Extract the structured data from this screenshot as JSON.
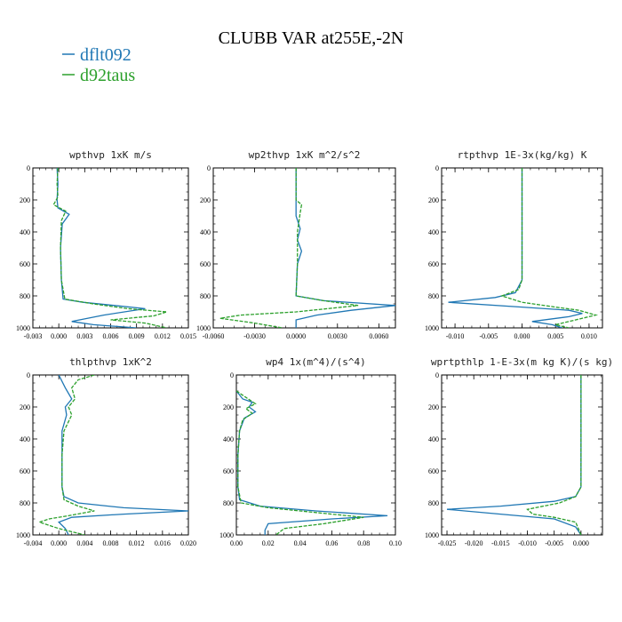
{
  "figure": {
    "title": "CLUBB VAR at255E,-2N"
  },
  "legend": {
    "entries": [
      {
        "name": "dflt092",
        "color": "#1f77b4",
        "style": "solid"
      },
      {
        "name": "d92taus",
        "color": "#2ca02c",
        "style": "dashed"
      }
    ]
  },
  "colors": {
    "dflt092": "#1f77b4",
    "d92taus": "#2ca02c"
  },
  "chart_data": [
    {
      "type": "line",
      "title": "wpthvp  1xK m/s",
      "xlim": [
        -0.003,
        0.015
      ],
      "ylim": [
        1000,
        0
      ],
      "xticks": [
        "-0.003",
        "0.000",
        "0.003",
        "0.006",
        "0.009",
        "0.012",
        "0.015"
      ],
      "yticks": [
        "0",
        "200",
        "400",
        "600",
        "800",
        "1000"
      ],
      "series": [
        {
          "name": "dflt092",
          "points": [
            [
              -0.0002,
              0
            ],
            [
              -0.0001,
              100
            ],
            [
              -0.0002,
              200
            ],
            [
              -0.0001,
              250
            ],
            [
              0.0012,
              290
            ],
            [
              0.0004,
              350
            ],
            [
              0.0002,
              500
            ],
            [
              0.0003,
              700
            ],
            [
              0.0005,
              820
            ],
            [
              0.0028,
              840
            ],
            [
              0.0065,
              860
            ],
            [
              0.01,
              880
            ],
            [
              0.0052,
              920
            ],
            [
              0.0015,
              960
            ],
            [
              0.004,
              980
            ],
            [
              0.009,
              1000
            ]
          ]
        },
        {
          "name": "d92taus",
          "points": [
            [
              -0.0001,
              0
            ],
            [
              -0.0002,
              100
            ],
            [
              -0.0001,
              180
            ],
            [
              -0.0006,
              230
            ],
            [
              0.0008,
              270
            ],
            [
              0.0003,
              330
            ],
            [
              0.0002,
              500
            ],
            [
              0.0003,
              700
            ],
            [
              0.0007,
              820
            ],
            [
              0.004,
              850
            ],
            [
              0.008,
              880
            ],
            [
              0.0125,
              900
            ],
            [
              0.011,
              925
            ],
            [
              0.006,
              950
            ],
            [
              0.01,
              970
            ],
            [
              0.0125,
              1000
            ]
          ]
        }
      ]
    },
    {
      "type": "line",
      "title": "wp2thvp  1xK m^2/s^2",
      "xlim": [
        -0.006,
        0.0072
      ],
      "ylim": [
        1000,
        0
      ],
      "xticks": [
        "-0.0060",
        "-0.0030",
        "0.0000",
        "0.0030",
        "0.0060"
      ],
      "yticks": [
        "0",
        "200",
        "400",
        "600",
        "800",
        "1000"
      ],
      "series": [
        {
          "name": "dflt092",
          "points": [
            [
              0.0,
              0
            ],
            [
              0.0,
              300
            ],
            [
              0.0003,
              380
            ],
            [
              0.0001,
              450
            ],
            [
              0.0004,
              520
            ],
            [
              0.0001,
              600
            ],
            [
              0.0,
              800
            ],
            [
              0.002,
              830
            ],
            [
              0.0072,
              860
            ],
            [
              0.004,
              890
            ],
            [
              0.0015,
              920
            ],
            [
              0.0,
              950
            ],
            [
              0.0,
              1000
            ]
          ]
        },
        {
          "name": "d92taus",
          "points": [
            [
              0.0,
              0
            ],
            [
              0.0,
              200
            ],
            [
              0.0004,
              230
            ],
            [
              0.0003,
              280
            ],
            [
              0.0001,
              400
            ],
            [
              0.0001,
              600
            ],
            [
              0.0,
              800
            ],
            [
              0.002,
              830
            ],
            [
              0.0045,
              860
            ],
            [
              0.0,
              900
            ],
            [
              -0.004,
              920
            ],
            [
              -0.0055,
              940
            ],
            [
              -0.003,
              970
            ],
            [
              -0.001,
              1000
            ]
          ]
        }
      ]
    },
    {
      "type": "line",
      "title": "rtpthvp  1E-3x(kg/kg) K",
      "xlim": [
        -0.012,
        0.012
      ],
      "ylim": [
        1000,
        0
      ],
      "xticks": [
        "-0.010",
        "-0.005",
        "0.000",
        "0.005",
        "0.010"
      ],
      "yticks": [
        "0",
        "200",
        "400",
        "600",
        "800",
        "1000"
      ],
      "series": [
        {
          "name": "dflt092",
          "points": [
            [
              0.0,
              0
            ],
            [
              0.0,
              500
            ],
            [
              0.0,
              700
            ],
            [
              -0.001,
              780
            ],
            [
              -0.004,
              810
            ],
            [
              -0.011,
              840
            ],
            [
              0.0,
              870
            ],
            [
              0.007,
              890
            ],
            [
              0.009,
              910
            ],
            [
              0.007,
              930
            ],
            [
              0.0015,
              960
            ],
            [
              0.0045,
              980
            ],
            [
              0.006,
              1000
            ]
          ]
        },
        {
          "name": "d92taus",
          "points": [
            [
              0.0,
              0
            ],
            [
              0.0,
              500
            ],
            [
              0.0,
              700
            ],
            [
              -0.0005,
              760
            ],
            [
              -0.003,
              800
            ],
            [
              0.0,
              840
            ],
            [
              0.005,
              870
            ],
            [
              0.0085,
              890
            ],
            [
              0.011,
              920
            ],
            [
              0.008,
              950
            ],
            [
              0.005,
              980
            ],
            [
              0.007,
              1000
            ]
          ]
        }
      ]
    },
    {
      "type": "line",
      "title": "thlpthvp  1xK^2",
      "xlim": [
        -0.004,
        0.02
      ],
      "ylim": [
        1000,
        0
      ],
      "xticks": [
        "-0.004",
        "0.000",
        "0.004",
        "0.008",
        "0.012",
        "0.016",
        "0.020"
      ],
      "yticks": [
        "0",
        "200",
        "400",
        "600",
        "800",
        "1000"
      ],
      "series": [
        {
          "name": "dflt092",
          "points": [
            [
              0.0,
              0
            ],
            [
              0.001,
              80
            ],
            [
              0.002,
              150
            ],
            [
              0.001,
              200
            ],
            [
              0.0012,
              250
            ],
            [
              0.0005,
              350
            ],
            [
              0.0005,
              500
            ],
            [
              0.0005,
              700
            ],
            [
              0.0008,
              760
            ],
            [
              0.003,
              800
            ],
            [
              0.01,
              830
            ],
            [
              0.02,
              850
            ],
            [
              0.01,
              870
            ],
            [
              0.002,
              890
            ],
            [
              0.0,
              920
            ],
            [
              0.001,
              960
            ],
            [
              0.0015,
              1000
            ]
          ]
        },
        {
          "name": "d92taus",
          "points": [
            [
              0.0055,
              0
            ],
            [
              0.003,
              30
            ],
            [
              0.002,
              80
            ],
            [
              0.0025,
              150
            ],
            [
              0.0015,
              200
            ],
            [
              0.002,
              250
            ],
            [
              0.0008,
              350
            ],
            [
              0.0005,
              500
            ],
            [
              0.0005,
              700
            ],
            [
              0.0008,
              780
            ],
            [
              0.003,
              820
            ],
            [
              0.0055,
              850
            ],
            [
              0.0015,
              880
            ],
            [
              -0.0015,
              900
            ],
            [
              -0.003,
              920
            ],
            [
              0.0,
              960
            ],
            [
              0.004,
              1000
            ]
          ]
        }
      ]
    },
    {
      "type": "line",
      "title": "wp4  1x(m^4)/(s^4)",
      "xlim": [
        0.0,
        0.1
      ],
      "ylim": [
        1000,
        0
      ],
      "xticks": [
        "0.00",
        "0.02",
        "0.04",
        "0.06",
        "0.08",
        "0.10"
      ],
      "yticks": [
        "0",
        "200",
        "400",
        "600",
        "800",
        "1000"
      ],
      "series": [
        {
          "name": "dflt092",
          "points": [
            [
              0.0,
              100
            ],
            [
              0.004,
              150
            ],
            [
              0.01,
              170
            ],
            [
              0.008,
              200
            ],
            [
              0.012,
              230
            ],
            [
              0.005,
              270
            ],
            [
              0.002,
              350
            ],
            [
              0.001,
              500
            ],
            [
              0.001,
              700
            ],
            [
              0.002,
              780
            ],
            [
              0.015,
              820
            ],
            [
              0.05,
              850
            ],
            [
              0.095,
              880
            ],
            [
              0.06,
              900
            ],
            [
              0.02,
              930
            ],
            [
              0.018,
              970
            ],
            [
              0.018,
              1000
            ]
          ]
        },
        {
          "name": "d92taus",
          "points": [
            [
              0.0,
              100
            ],
            [
              0.006,
              140
            ],
            [
              0.012,
              180
            ],
            [
              0.006,
              210
            ],
            [
              0.01,
              240
            ],
            [
              0.004,
              280
            ],
            [
              0.002,
              350
            ],
            [
              0.001,
              500
            ],
            [
              0.001,
              700
            ],
            [
              0.003,
              800
            ],
            [
              0.02,
              830
            ],
            [
              0.05,
              860
            ],
            [
              0.08,
              890
            ],
            [
              0.055,
              930
            ],
            [
              0.03,
              960
            ],
            [
              0.025,
              1000
            ]
          ]
        }
      ]
    },
    {
      "type": "line",
      "title": "wprtpthlp  1-E-3x(m kg K)/(s kg)",
      "xlim": [
        -0.026,
        0.004
      ],
      "ylim": [
        1000,
        0
      ],
      "xticks": [
        "-0.025",
        "-0.020",
        "-0.015",
        "-0.010",
        "-0.005",
        "0.000"
      ],
      "yticks": [
        "0",
        "200",
        "400",
        "600",
        "800",
        "1000"
      ],
      "series": [
        {
          "name": "dflt092",
          "points": [
            [
              0.0,
              0
            ],
            [
              0.0,
              500
            ],
            [
              0.0,
              700
            ],
            [
              -0.001,
              760
            ],
            [
              -0.005,
              790
            ],
            [
              -0.015,
              820
            ],
            [
              -0.025,
              840
            ],
            [
              -0.015,
              870
            ],
            [
              -0.005,
              900
            ],
            [
              -0.001,
              950
            ],
            [
              0.0,
              1000
            ]
          ]
        },
        {
          "name": "d92taus",
          "points": [
            [
              0.0,
              0
            ],
            [
              0.0,
              500
            ],
            [
              0.0,
              700
            ],
            [
              -0.001,
              760
            ],
            [
              -0.004,
              800
            ],
            [
              -0.01,
              840
            ],
            [
              -0.009,
              870
            ],
            [
              -0.005,
              890
            ],
            [
              -0.001,
              920
            ],
            [
              -0.0005,
              960
            ],
            [
              0.0,
              1000
            ]
          ]
        }
      ]
    }
  ]
}
